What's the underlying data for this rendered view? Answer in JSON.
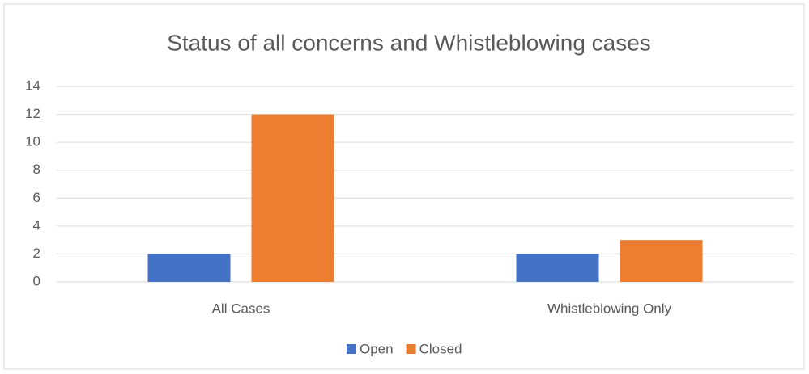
{
  "chart_data": {
    "type": "bar",
    "title": "Status of all concerns and Whistleblowing cases",
    "categories": [
      "All Cases",
      "Whistleblowing Only"
    ],
    "series": [
      {
        "name": "Open",
        "color": "#4472c4",
        "values": [
          2,
          2
        ]
      },
      {
        "name": "Closed",
        "color": "#ed7d31",
        "values": [
          12,
          3
        ]
      }
    ],
    "ylim": [
      0,
      14
    ],
    "yticks": [
      0,
      2,
      4,
      6,
      8,
      10,
      12,
      14
    ],
    "grid": true,
    "legend": "bottom"
  }
}
